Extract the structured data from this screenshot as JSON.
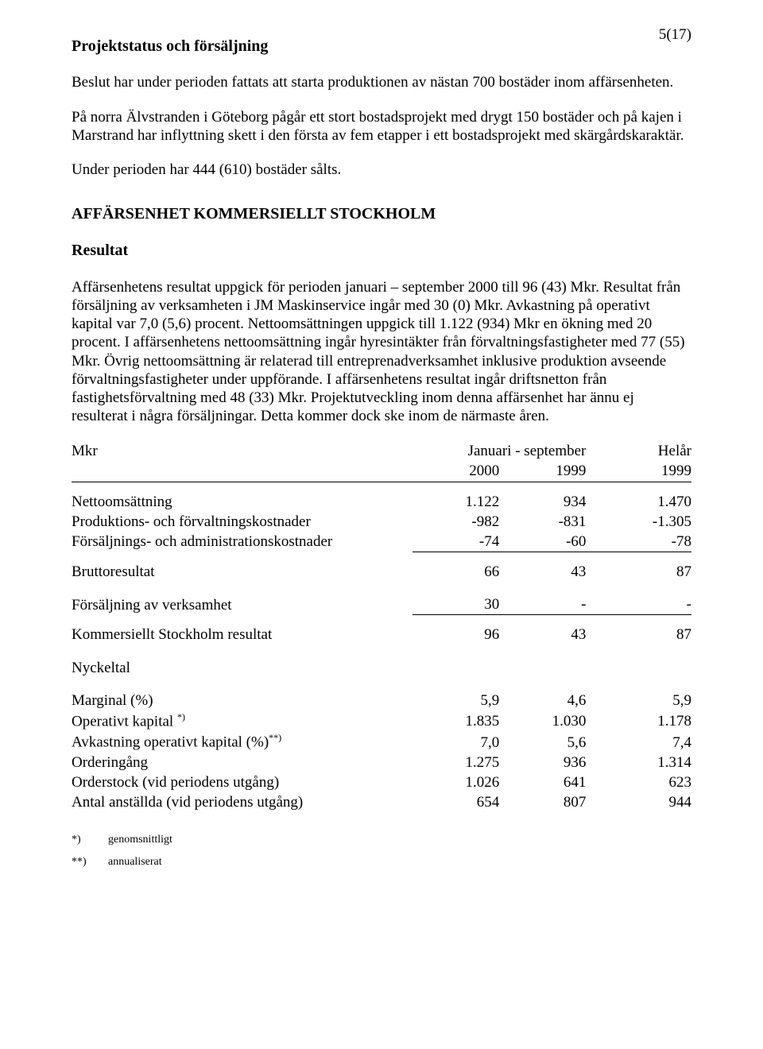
{
  "page_number": "5(17)",
  "section_title": "Projektstatus och försäljning",
  "paragraphs": {
    "p1": "Beslut har under perioden fattats att starta produktionen av nästan 700 bostäder inom affärsenheten.",
    "p2": "På norra Älvstranden i Göteborg pågår ett stort bostadsprojekt med drygt 150 bostäder och på kajen i Marstrand har inflyttning skett i den första av fem etapper i ett bostadsprojekt med skärgårdskaraktär.",
    "p3": "Under perioden har 444 (610) bostäder sålts."
  },
  "unit_title": "AFFÄRSENHET KOMMERSIELLT STOCKHOLM",
  "resultat_heading": "Resultat",
  "resultat_text": "Affärsenhetens resultat uppgick för perioden januari – september 2000 till 96 (43) Mkr. Resultat från försäljning av verksamheten i JM Maskinservice ingår med 30 (0) Mkr. Avkastning på operativt kapital var 7,0 (5,6) procent. Nettoomsättningen uppgick till 1.122 (934) Mkr en ökning med 20 procent. I affärsenhetens nettoomsättning ingår hyresintäkter från förvaltningsfastigheter med 77 (55) Mkr. Övrig nettoomsättning är relaterad till entreprenadverksamhet inklusive produktion avseende förvaltningsfastigheter under uppförande. I affärsenhetens resultat ingår driftsnetton från fastighetsförvaltning med 48 (33) Mkr. Projektutveckling inom denna affärsenhet har ännu ej resulterat i några försäljningar. Detta kommer dock ske inom de närmaste åren.",
  "table": {
    "headers": {
      "row_label": "Mkr",
      "span_label": "Januari  -  september",
      "helar_label": "Helår",
      "year_a": "2000",
      "year_b": "1999",
      "year_c": "1999"
    },
    "rows": {
      "nettooms": {
        "label": "Nettoomsättning",
        "a": "1.122",
        "b": "934",
        "c": "1.470"
      },
      "prodkost": {
        "label": "Produktions- och förvaltningskostnader",
        "a": "-982",
        "b": "-831",
        "c": "-1.305"
      },
      "forsadmin": {
        "label": "Försäljnings- och administrationskostnader",
        "a": "-74",
        "b": "-60",
        "c": "-78"
      },
      "brutto": {
        "label": "Bruttoresultat",
        "a": "66",
        "b": "43",
        "c": "87"
      },
      "forsverk": {
        "label": "Försäljning av verksamhet",
        "a": "30",
        "b": "-",
        "c": "-"
      },
      "komres": {
        "label": "Kommersiellt Stockholm resultat",
        "a": "96",
        "b": "43",
        "c": "87"
      }
    },
    "nyckeltal_heading": "Nyckeltal",
    "nyckeltal": {
      "marginal": {
        "label": "Marginal (%)",
        "a": "5,9",
        "b": "4,6",
        "c": "5,9"
      },
      "opkap": {
        "label_pre": "Operativt kapital ",
        "sup": "*)",
        "a": "1.835",
        "b": "1.030",
        "c": "1.178"
      },
      "avkast": {
        "label_pre": "Avkastning operativt kapital (%)",
        "sup": "**)",
        "a": "7,0",
        "b": "5,6",
        "c": "7,4"
      },
      "ordering": {
        "label": "Orderingång",
        "a": "1.275",
        "b": "936",
        "c": "1.314"
      },
      "orderstock": {
        "label": "Orderstock (vid periodens utgång)",
        "a": "1.026",
        "b": "641",
        "c": "623"
      },
      "anstallda": {
        "label": "Antal anställda (vid periodens utgång)",
        "a": "654",
        "b": "807",
        "c": "944"
      }
    }
  },
  "footnotes": {
    "f1_mark": "*)",
    "f1_text": "genomsnittligt",
    "f2_mark": "**)",
    "f2_text": "annualiserat"
  }
}
